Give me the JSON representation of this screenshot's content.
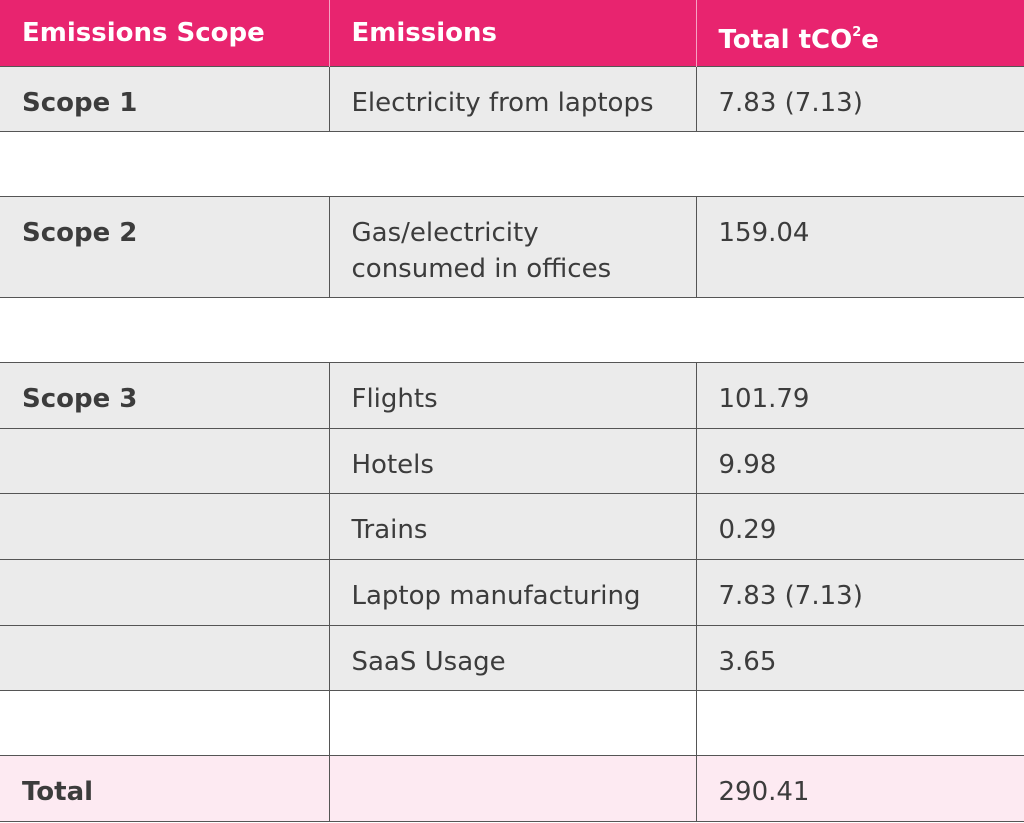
{
  "header": {
    "col1": "Emissions Scope",
    "col2": "Emissions",
    "col3_main": "Total tCO",
    "col3_sup": "2",
    "col3_end": "e"
  },
  "rows": [
    {
      "scope": "Scope 1",
      "emission": "Electricity from laptops",
      "total": "7.83 (7.13)"
    },
    {
      "scope": "Scope 2",
      "emission": "Gas/electricity consumed in offices",
      "total": "159.04"
    },
    {
      "scope": "Scope 3",
      "emission": "Flights",
      "total": "101.79"
    },
    {
      "scope": "",
      "emission": "Hotels",
      "total": "9.98"
    },
    {
      "scope": "",
      "emission": "Trains",
      "total": "0.29"
    },
    {
      "scope": "",
      "emission": "Laptop manufacturing",
      "total": "7.83 (7.13)"
    },
    {
      "scope": "",
      "emission": "SaaS Usage",
      "total": "3.65"
    }
  ],
  "total": {
    "label": "Total",
    "emission": "",
    "value": "290.41"
  },
  "colors": {
    "header_bg": "#e8246f",
    "row_bg": "#ebebeb",
    "total_bg": "#fdeaf2"
  }
}
